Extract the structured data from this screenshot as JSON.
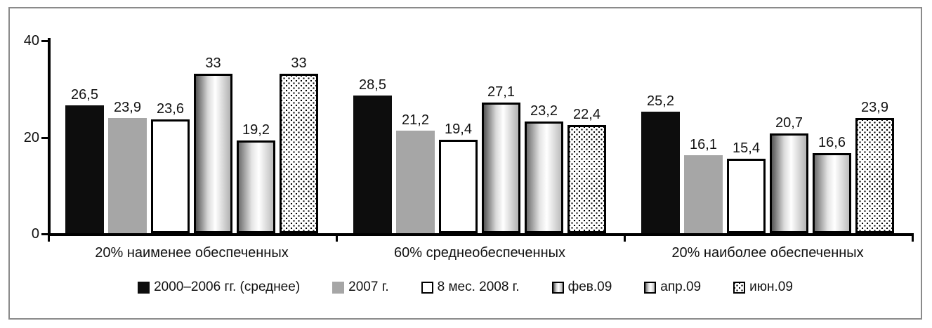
{
  "chart_data": {
    "type": "bar",
    "title": "",
    "number_format": "decimal-comma",
    "categories": [
      "20% наименее обеспеченных",
      "60% среднеобеспеченных",
      "20% наиболее обеспеченных"
    ],
    "series": [
      {
        "name": "2000–2006 гг. (среднее)",
        "style": "solid-black",
        "values": [
          26.5,
          28.5,
          25.2
        ]
      },
      {
        "name": "2007 г.",
        "style": "solid-gray",
        "values": [
          23.9,
          21.2,
          16.1
        ]
      },
      {
        "name": "8 мес. 2008 г.",
        "style": "white-outline",
        "values": [
          23.6,
          19.4,
          15.4
        ]
      },
      {
        "name": "фев.09",
        "style": "gradient-cylinder",
        "values": [
          33,
          27.1,
          20.7
        ]
      },
      {
        "name": "апр.09",
        "style": "gradient-cylinder",
        "values": [
          19.2,
          23.2,
          16.6
        ]
      },
      {
        "name": "июн.09",
        "style": "dotted-pattern",
        "values": [
          33,
          22.4,
          23.9
        ]
      }
    ],
    "y_ticks": [
      0,
      20,
      40
    ],
    "ylim": [
      0,
      40
    ],
    "grid": false,
    "legend_position": "bottom",
    "colors": {
      "bar_black": "#0d0d0d",
      "bar_gray": "#a6a6a6",
      "bar_white": "#ffffff",
      "outline": "#000000",
      "frame_border": "#8a8a8a",
      "text": "#111111"
    }
  }
}
